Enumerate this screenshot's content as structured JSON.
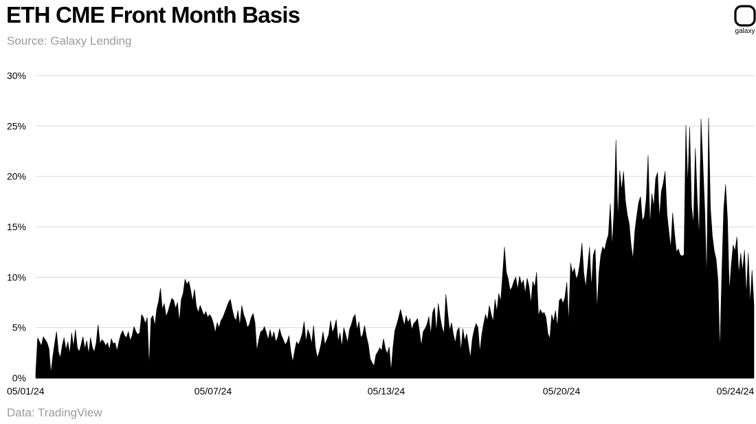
{
  "header": {
    "title": "ETH CME Front Month Basis",
    "subtitle": "Source: Galaxy Lending"
  },
  "footer": {
    "data_source": "Data: TradingView"
  },
  "logo": {
    "text": "galaxy",
    "icon": "galaxy-logo-icon"
  },
  "colors": {
    "area_fill": "#000000",
    "grid": "#d9d9d9",
    "muted_text": "#9a9a9a"
  },
  "chart_data": {
    "type": "area",
    "title": "ETH CME Front Month Basis",
    "xlabel": "",
    "ylabel": "",
    "ylim": [
      0,
      30
    ],
    "grid": true,
    "y_ticks": [
      "0%",
      "5%",
      "10%",
      "15%",
      "20%",
      "25%",
      "30%"
    ],
    "x_ticks": [
      "05/01/24",
      "05/07/24",
      "05/13/24",
      "05/20/24",
      "05/24/24"
    ],
    "series": [
      {
        "values": [
          0.5,
          4.0,
          3.6,
          3.2,
          4.1,
          3.8,
          3.5,
          2.9,
          0.5,
          2.1,
          3.4,
          4.6,
          2.6,
          2.0,
          3.2,
          4.0,
          2.8,
          3.6,
          2.4,
          4.5,
          3.1,
          4.8,
          3.0,
          2.6,
          3.3,
          4.1,
          2.9,
          3.7,
          2.4,
          4.0,
          3.0,
          2.6,
          3.5,
          5.3,
          3.4,
          3.8,
          3.6,
          3.2,
          3.5,
          2.8,
          3.9,
          3.4,
          3.5,
          2.7,
          3.6,
          4.3,
          4.7,
          4.2,
          4.0,
          4.6,
          3.7,
          4.2,
          5.1,
          4.6,
          4.3,
          4.5,
          6.3,
          6.0,
          5.4,
          6.0,
          1.2,
          5.9,
          6.2,
          5.2,
          6.8,
          7.6,
          8.9,
          6.8,
          7.4,
          6.1,
          6.6,
          7.3,
          7.9,
          7.7,
          6.9,
          7.5,
          5.6,
          7.8,
          8.4,
          9.8,
          9.3,
          9.6,
          8.7,
          7.6,
          8.8,
          7.1,
          6.5,
          7.2,
          6.7,
          6.2,
          6.6,
          6.0,
          6.3,
          6.0,
          5.4,
          4.5,
          5.5,
          5.0,
          5.7,
          6.0,
          6.5,
          7.0,
          7.5,
          7.8,
          6.8,
          6.0,
          5.7,
          6.7,
          5.2,
          7.2,
          6.3,
          5.8,
          5.0,
          5.3,
          6.0,
          6.4,
          5.5,
          2.7,
          3.8,
          4.6,
          4.7,
          5.1,
          4.5,
          3.8,
          4.8,
          3.9,
          4.6,
          3.6,
          4.0,
          4.9,
          4.2,
          3.8,
          3.3,
          3.6,
          4.2,
          2.6,
          1.6,
          2.7,
          3.6,
          3.3,
          3.8,
          4.4,
          5.6,
          3.6,
          4.8,
          4.3,
          3.4,
          5.2,
          3.0,
          2.0,
          2.6,
          3.4,
          4.6,
          3.3,
          3.8,
          4.3,
          5.7,
          4.5,
          5.0,
          5.8,
          3.6,
          4.5,
          3.1,
          5.0,
          4.3,
          3.5,
          4.8,
          5.3,
          6.0,
          6.3,
          4.8,
          5.6,
          4.0,
          4.3,
          5.2,
          4.1,
          3.3,
          1.9,
          1.5,
          1.2,
          2.3,
          2.6,
          3.0,
          2.7,
          3.9,
          2.9,
          2.4,
          3.1,
          0.7,
          3.0,
          4.7,
          5.3,
          6.0,
          6.8,
          6.0,
          5.2,
          6.2,
          5.5,
          5.9,
          4.8,
          5.4,
          5.6,
          5.9,
          4.7,
          3.2,
          4.6,
          4.9,
          5.3,
          6.1,
          4.3,
          6.5,
          7.0,
          4.6,
          7.4,
          6.0,
          5.0,
          4.4,
          8.3,
          6.4,
          4.7,
          5.5,
          4.3,
          3.5,
          4.7,
          5.0,
          2.7,
          4.9,
          3.7,
          4.4,
          3.2,
          2.0,
          3.9,
          4.8,
          5.4,
          5.0,
          2.6,
          4.3,
          5.4,
          6.3,
          5.7,
          7.2,
          6.3,
          5.6,
          7.8,
          6.6,
          8.4,
          7.6,
          10.2,
          13.0,
          10.5,
          9.8,
          8.7,
          9.0,
          9.6,
          10.0,
          8.8,
          10.1,
          9.3,
          9.7,
          8.4,
          9.9,
          9.1,
          7.4,
          9.6,
          9.0,
          10.5,
          6.2,
          6.8,
          6.4,
          6.5,
          6.0,
          4.4,
          3.9,
          6.3,
          5.6,
          6.7,
          5.1,
          7.7,
          7.9,
          7.4,
          8.0,
          9.5,
          5.5,
          11.4,
          10.4,
          10.9,
          9.8,
          10.3,
          11.5,
          13.4,
          10.4,
          9.0,
          11.0,
          13.0,
          9.0,
          12.2,
          12.8,
          6.8,
          10.5,
          12.2,
          13.0,
          12.7,
          13.6,
          14.2,
          17.3,
          13.1,
          16.7,
          23.6,
          15.8,
          20.6,
          18.6,
          20.5,
          17.6,
          16.2,
          15.3,
          13.2,
          11.8,
          14.6,
          16.1,
          17.4,
          18.0,
          15.6,
          16.0,
          17.7,
          22.1,
          15.2,
          18.3,
          17.0,
          19.8,
          20.4,
          15.8,
          18.5,
          19.3,
          20.5,
          16.3,
          14.5,
          12.9,
          16.4,
          14.3,
          12.5,
          12.8,
          12.2,
          12.1,
          12.2,
          25.1,
          19.2,
          24.9,
          17.0,
          15.3,
          22.8,
          17.8,
          14.0,
          25.7,
          21.3,
          16.6,
          9.8,
          25.8,
          16.8,
          14.1,
          12.6,
          11.8,
          9.6,
          2.6,
          10.4,
          16.7,
          19.2,
          15.8,
          8.6,
          11.2,
          13.2,
          12.6,
          14.0,
          10.3,
          12.4,
          10.6,
          12.7,
          8.2,
          12.4,
          7.4,
          10.7,
          7.2
        ]
      }
    ]
  }
}
